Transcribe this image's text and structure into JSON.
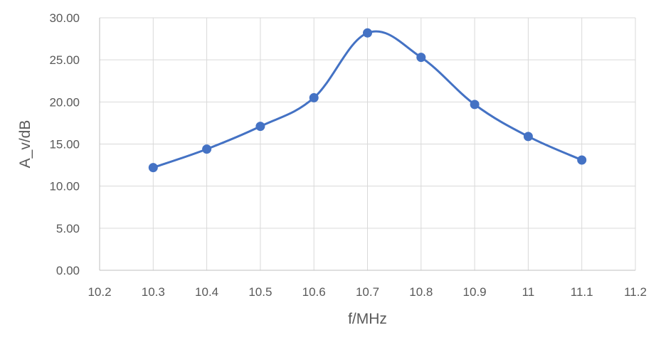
{
  "chart_data": {
    "type": "scatter",
    "title": "",
    "xlabel": "f/MHz",
    "ylabel": "A_v/dB",
    "xlim": [
      10.2,
      11.2
    ],
    "ylim": [
      0,
      30
    ],
    "x_ticks": [
      "10.2",
      "10.3",
      "10.4",
      "10.5",
      "10.6",
      "10.7",
      "10.8",
      "10.9",
      "11",
      "11.1",
      "11.2"
    ],
    "y_ticks": [
      "0.00",
      "5.00",
      "10.00",
      "15.00",
      "20.00",
      "25.00",
      "30.00"
    ],
    "grid": true,
    "smooth_line": true,
    "series": [
      {
        "color": "#4472C4",
        "x": [
          10.3,
          10.4,
          10.5,
          10.6,
          10.7,
          10.8,
          10.9,
          11.0,
          11.1
        ],
        "y": [
          12.2,
          14.4,
          17.1,
          20.5,
          28.2,
          25.3,
          19.7,
          15.9,
          13.1
        ]
      }
    ]
  }
}
